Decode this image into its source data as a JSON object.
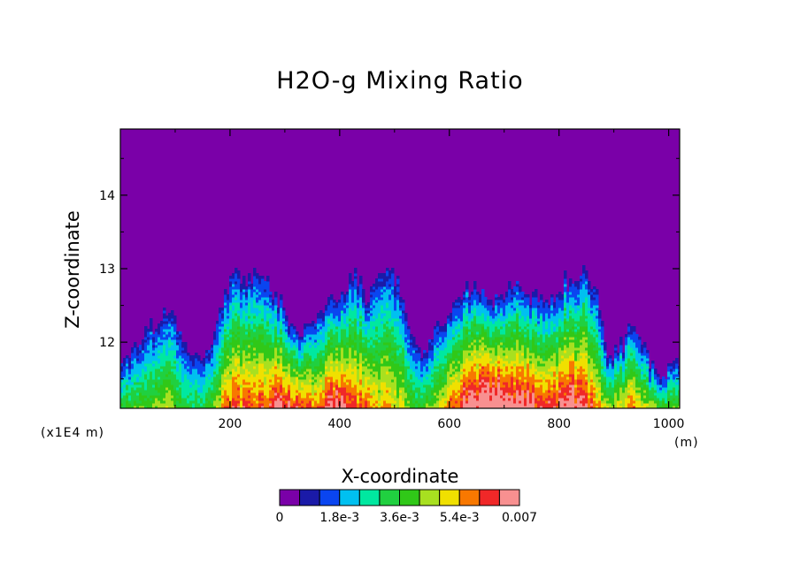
{
  "chart_data": {
    "type": "heatmap",
    "title": "H2O-g Mixing Ratio",
    "xlabel": "X-coordinate",
    "ylabel": "Z-coordinate",
    "x_unit_label": "(m)",
    "y_unit_label": "(x1E4 m)",
    "xlim": [
      0,
      1020
    ],
    "ylim": [
      11.1,
      14.9
    ],
    "x_ticks": [
      "200",
      "400",
      "600",
      "800",
      "1000"
    ],
    "x_tick_values": [
      200,
      400,
      600,
      800,
      1000
    ],
    "y_ticks": [
      "12",
      "13",
      "14"
    ],
    "y_tick_values": [
      12,
      13,
      14
    ],
    "colorbar": {
      "labels": [
        "0",
        "1.8e-3",
        "3.6e-3",
        "5.4e-3",
        "0.007"
      ],
      "label_values": [
        0,
        0.0018,
        0.0036,
        0.0054,
        0.007
      ],
      "levels": [
        0,
        0.0006,
        0.0012,
        0.0018,
        0.0024,
        0.003,
        0.0036,
        0.0042,
        0.0048,
        0.0054,
        0.006,
        0.0066,
        0.007
      ],
      "colors": [
        "#7a00a8",
        "#1a1aa8",
        "#0a45f0",
        "#00c0f0",
        "#00e8a0",
        "#20d040",
        "#30c818",
        "#a8e020",
        "#f0e000",
        "#f87800",
        "#f02828",
        "#f89090"
      ]
    },
    "background_value": 0,
    "profile_x": [
      0,
      30,
      60,
      90,
      110,
      130,
      150,
      175,
      190,
      210,
      230,
      250,
      270,
      290,
      310,
      330,
      350,
      370,
      390,
      410,
      430,
      450,
      470,
      490,
      510,
      530,
      550,
      570,
      590,
      610,
      630,
      650,
      670,
      690,
      710,
      730,
      750,
      770,
      790,
      810,
      830,
      850,
      870,
      890,
      910,
      930,
      950,
      970,
      990,
      1020
    ],
    "moist_top": [
      11.77,
      11.95,
      12.2,
      12.45,
      12.05,
      11.8,
      11.72,
      12.1,
      12.7,
      12.95,
      12.85,
      12.95,
      12.75,
      12.55,
      12.2,
      12.05,
      12.25,
      12.45,
      12.55,
      12.7,
      12.9,
      12.55,
      12.9,
      12.95,
      12.7,
      12.15,
      11.75,
      12.2,
      12.3,
      12.5,
      12.7,
      12.75,
      12.6,
      12.55,
      12.7,
      12.75,
      12.6,
      12.65,
      12.6,
      12.8,
      12.85,
      12.95,
      12.55,
      11.75,
      11.85,
      12.2,
      12.0,
      11.65,
      11.55,
      11.72
    ],
    "moist_intensity": [
      0.46,
      0.48,
      0.5,
      0.6,
      0.45,
      0.42,
      0.4,
      0.55,
      0.75,
      0.85,
      0.82,
      0.82,
      0.85,
      0.98,
      0.95,
      0.85,
      0.8,
      0.88,
      0.95,
      0.92,
      0.85,
      0.78,
      0.7,
      0.72,
      0.65,
      0.5,
      0.45,
      0.6,
      0.72,
      0.88,
      0.95,
      1.0,
      1.05,
      1.05,
      1.05,
      1.0,
      0.95,
      0.92,
      0.9,
      0.95,
      0.98,
      0.9,
      0.75,
      0.55,
      0.65,
      0.8,
      0.7,
      0.55,
      0.5,
      0.52
    ],
    "gridlines": false
  }
}
